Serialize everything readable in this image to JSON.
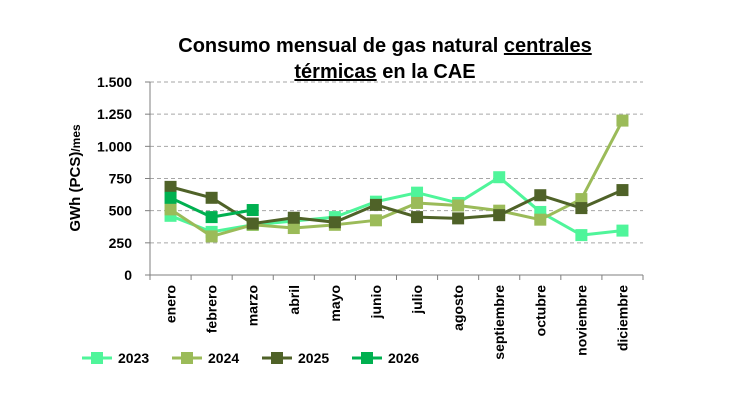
{
  "chart_data": {
    "type": "line",
    "title_part1": "Consumo mensual de gas natural ",
    "title_part2": "centrales",
    "title_part3": "térmicas",
    "title_part4": " en la CAE",
    "ylabel_main": "GWh (PCS)",
    "ylabel_unit": "/mes",
    "ylim": [
      0,
      1500
    ],
    "yticks": [
      0,
      250,
      500,
      750,
      1000,
      1250,
      1500
    ],
    "ytick_labels": [
      "0",
      "250",
      "500",
      "750",
      "1.000",
      "1.250",
      "1.500"
    ],
    "grid": "horizontal dashed",
    "legend_position": "bottom",
    "categories": [
      "enero",
      "febrero",
      "marzo",
      "abril",
      "mayo",
      "junio",
      "julio",
      "agosto",
      "septiembre",
      "octubre",
      "noviembre",
      "diciembre"
    ],
    "series": [
      {
        "name": "2023",
        "color": "#4ff59a",
        "values": [
          460,
          335,
          390,
          420,
          450,
          570,
          640,
          560,
          760,
          490,
          310,
          345
        ]
      },
      {
        "name": "2024",
        "color": "#9bbb59",
        "values": [
          510,
          300,
          390,
          365,
          390,
          425,
          560,
          540,
          500,
          430,
          590,
          1200
        ]
      },
      {
        "name": "2025",
        "color": "#4f6228",
        "values": [
          685,
          600,
          400,
          445,
          410,
          545,
          450,
          440,
          465,
          620,
          520,
          660
        ]
      },
      {
        "name": "2026",
        "color": "#00b050",
        "values": [
          600,
          450,
          505,
          null,
          null,
          null,
          null,
          null,
          null,
          null,
          null,
          null
        ]
      }
    ]
  }
}
